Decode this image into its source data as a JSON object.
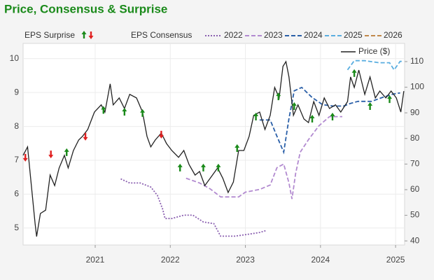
{
  "chart_data": {
    "type": "line",
    "title": "Price, Consensus & Surprise",
    "surprise_label": "EPS Surprise",
    "consensus_label": "EPS Consensus",
    "xlim": [
      2020.04,
      2025.12
    ],
    "xticks": [
      2021,
      2022,
      2023,
      2024,
      2025
    ],
    "ylim": [
      4.5,
      10.45
    ],
    "yticks": [
      5,
      6,
      7,
      8,
      9,
      10
    ],
    "y2lim": [
      38.4,
      117.1
    ],
    "y2ticks": [
      40,
      50,
      60,
      70,
      80,
      90,
      100,
      110
    ],
    "grid": true,
    "series": [
      {
        "name": "2022",
        "color": "#8a5fb0",
        "style": "dotted",
        "x": [
          2021.34,
          2021.46,
          2021.6,
          2021.74,
          2021.83,
          2021.9,
          2021.93,
          2022.02,
          2022.18,
          2022.3,
          2022.44,
          2022.58,
          2022.67,
          2022.86,
          2023.05,
          2023.19,
          2023.28
        ],
        "values": [
          6.45,
          6.33,
          6.33,
          6.21,
          5.96,
          5.55,
          5.28,
          5.28,
          5.38,
          5.38,
          5.18,
          5.13,
          4.76,
          4.76,
          4.82,
          4.87,
          4.93
        ]
      },
      {
        "name": "2023",
        "color": "#b28ad0",
        "style": "dashed",
        "x": [
          2022.21,
          2022.39,
          2022.53,
          2022.67,
          2022.91,
          2023.0,
          2023.19,
          2023.33,
          2023.42,
          2023.51,
          2023.58,
          2023.62,
          2023.67,
          2023.73,
          2023.84,
          2023.98,
          2024.12,
          2024.29
        ],
        "values": [
          6.47,
          6.33,
          6.16,
          5.92,
          5.92,
          6.06,
          6.14,
          6.27,
          6.78,
          6.89,
          6.33,
          5.86,
          6.62,
          7.24,
          7.61,
          8.02,
          8.29,
          8.29
        ]
      },
      {
        "name": "2024",
        "color": "#2a5fa8",
        "style": "dashed",
        "x": [
          2023.19,
          2023.33,
          2023.42,
          2023.51,
          2023.58,
          2023.65,
          2023.75,
          2023.89,
          2024.03,
          2024.17,
          2024.31,
          2024.4,
          2024.5,
          2024.68,
          2024.82,
          2024.96,
          2025.06
        ],
        "values": [
          8.19,
          8.19,
          7.71,
          7.24,
          8.23,
          9.05,
          9.15,
          8.85,
          8.64,
          8.6,
          8.6,
          8.68,
          8.74,
          8.74,
          8.85,
          8.95,
          8.99
        ]
      },
      {
        "name": "2025",
        "color": "#5aaee0",
        "style": "dashed",
        "x": [
          2024.36,
          2024.45,
          2024.59,
          2024.78,
          2024.92,
          2024.98,
          2025.06,
          2025.1
        ],
        "values": [
          9.67,
          9.94,
          9.94,
          9.88,
          9.88,
          9.67,
          9.92,
          9.92
        ]
      },
      {
        "name": "2026",
        "color": "#c0884a",
        "style": "dashed",
        "x": [],
        "values": []
      },
      {
        "name": "Price ($)",
        "color": "#222222",
        "style": "solid",
        "axis": "y2",
        "x": [
          2020.04,
          2020.1,
          2020.15,
          2020.2,
          2020.22,
          2020.27,
          2020.34,
          2020.4,
          2020.46,
          2020.52,
          2020.59,
          2020.64,
          2020.71,
          2020.78,
          2020.83,
          2020.9,
          2020.99,
          2021.08,
          2021.13,
          2021.2,
          2021.24,
          2021.32,
          2021.39,
          2021.46,
          2021.55,
          2021.63,
          2021.69,
          2021.74,
          2021.8,
          2021.88,
          2021.95,
          2022.02,
          2022.11,
          2022.18,
          2022.25,
          2022.33,
          2022.39,
          2022.46,
          2022.53,
          2022.63,
          2022.7,
          2022.77,
          2022.84,
          2022.91,
          2022.98,
          2023.05,
          2023.11,
          2023.19,
          2023.26,
          2023.33,
          2023.39,
          2023.45,
          2023.5,
          2023.54,
          2023.58,
          2023.64,
          2023.7,
          2023.78,
          2023.84,
          2023.91,
          2023.98,
          2024.05,
          2024.12,
          2024.2,
          2024.27,
          2024.36,
          2024.4,
          2024.45,
          2024.51,
          2024.59,
          2024.66,
          2024.73,
          2024.79,
          2024.87,
          2024.94,
          2025.01,
          2025.07,
          2025.11
        ],
        "values": [
          73.4,
          76.7,
          61.6,
          46.6,
          41.7,
          50.7,
          52,
          65.7,
          61.6,
          68.5,
          73.4,
          68.5,
          75.3,
          79.4,
          80.8,
          83.5,
          90.3,
          93.1,
          90.3,
          101.3,
          93.1,
          95.8,
          91.7,
          97.2,
          95.8,
          90.3,
          80.8,
          76.7,
          79.4,
          82.1,
          78,
          75.3,
          72.6,
          75.3,
          69.8,
          65.7,
          67.1,
          61.6,
          64.4,
          68.5,
          64.4,
          58.9,
          63,
          75.3,
          75.3,
          80.8,
          89,
          90.3,
          83.5,
          89,
          99.9,
          95.8,
          108.1,
          110,
          104,
          89,
          93.1,
          87.6,
          86.2,
          94.4,
          89,
          95.8,
          91.7,
          93.1,
          90.3,
          94.4,
          104,
          99.9,
          106.7,
          97.2,
          104,
          95.8,
          98.5,
          95.8,
          98.5,
          95.8,
          90.3,
          98.5
        ]
      }
    ],
    "surprises": {
      "up_color": "#1a8a1a",
      "down_color": "#e02020",
      "x": [
        2020.07,
        2020.41,
        2020.62,
        2020.87,
        2021.11,
        2021.39,
        2021.63,
        2021.88,
        2022.13,
        2022.44,
        2022.64,
        2022.89,
        2023.14,
        2023.44,
        2023.65,
        2023.89,
        2024.16,
        2024.45,
        2024.66,
        2024.92
      ],
      "values": [
        72.6,
        73.9,
        74.5,
        80.8,
        91,
        90.3,
        89.8,
        81.6,
        68.5,
        68.5,
        68.5,
        76.1,
        88.4,
        96.3,
        92.5,
        87.6,
        88.4,
        105.4,
        92.5,
        95.2
      ],
      "direction": [
        "down",
        "down",
        "up",
        "down",
        "up",
        "up",
        "up",
        "down",
        "up",
        "up",
        "up",
        "up",
        "up",
        "up",
        "up",
        "up",
        "up",
        "up",
        "up",
        "up"
      ]
    }
  }
}
